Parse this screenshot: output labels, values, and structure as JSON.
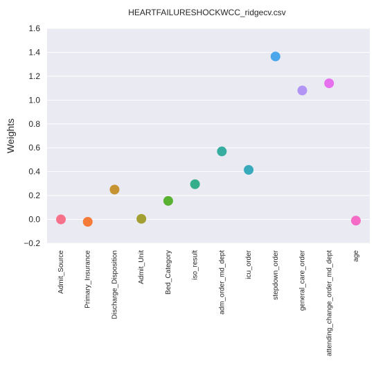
{
  "chart_data": {
    "type": "scatter",
    "title": "HEARTFAILURESHOCKWCC_ridgecv.csv",
    "xlabel": "",
    "ylabel": "Weights",
    "ylim": [
      -0.2,
      1.6
    ],
    "yticks": [
      -0.2,
      0.0,
      0.2,
      0.4,
      0.6,
      0.8,
      1.0,
      1.2,
      1.4,
      1.6
    ],
    "ytick_labels": [
      "−0.2",
      "0.0",
      "0.2",
      "0.4",
      "0.6",
      "0.8",
      "1.0",
      "1.2",
      "1.4",
      "1.6"
    ],
    "grid": true,
    "categories": [
      "Admit_Source",
      "Primary_Insurance",
      "Discharge_Disposition",
      "Admit_Unit",
      "Bed_Category",
      "iso_result",
      "adm_order_md_dept",
      "icu_order",
      "stepdown_order",
      "general_care_order",
      "attending_change_order_md_dept",
      "age"
    ],
    "values": [
      0.0,
      -0.02,
      0.25,
      0.005,
      0.155,
      0.295,
      0.57,
      0.415,
      1.365,
      1.08,
      1.14,
      -0.01
    ],
    "colors": [
      "#f77189",
      "#f77b38",
      "#c69432",
      "#a39f33",
      "#58b131",
      "#34ae8b",
      "#36ad9e",
      "#38aabc",
      "#4ca6ec",
      "#b294f5",
      "#e770ee",
      "#f46cc6"
    ]
  }
}
